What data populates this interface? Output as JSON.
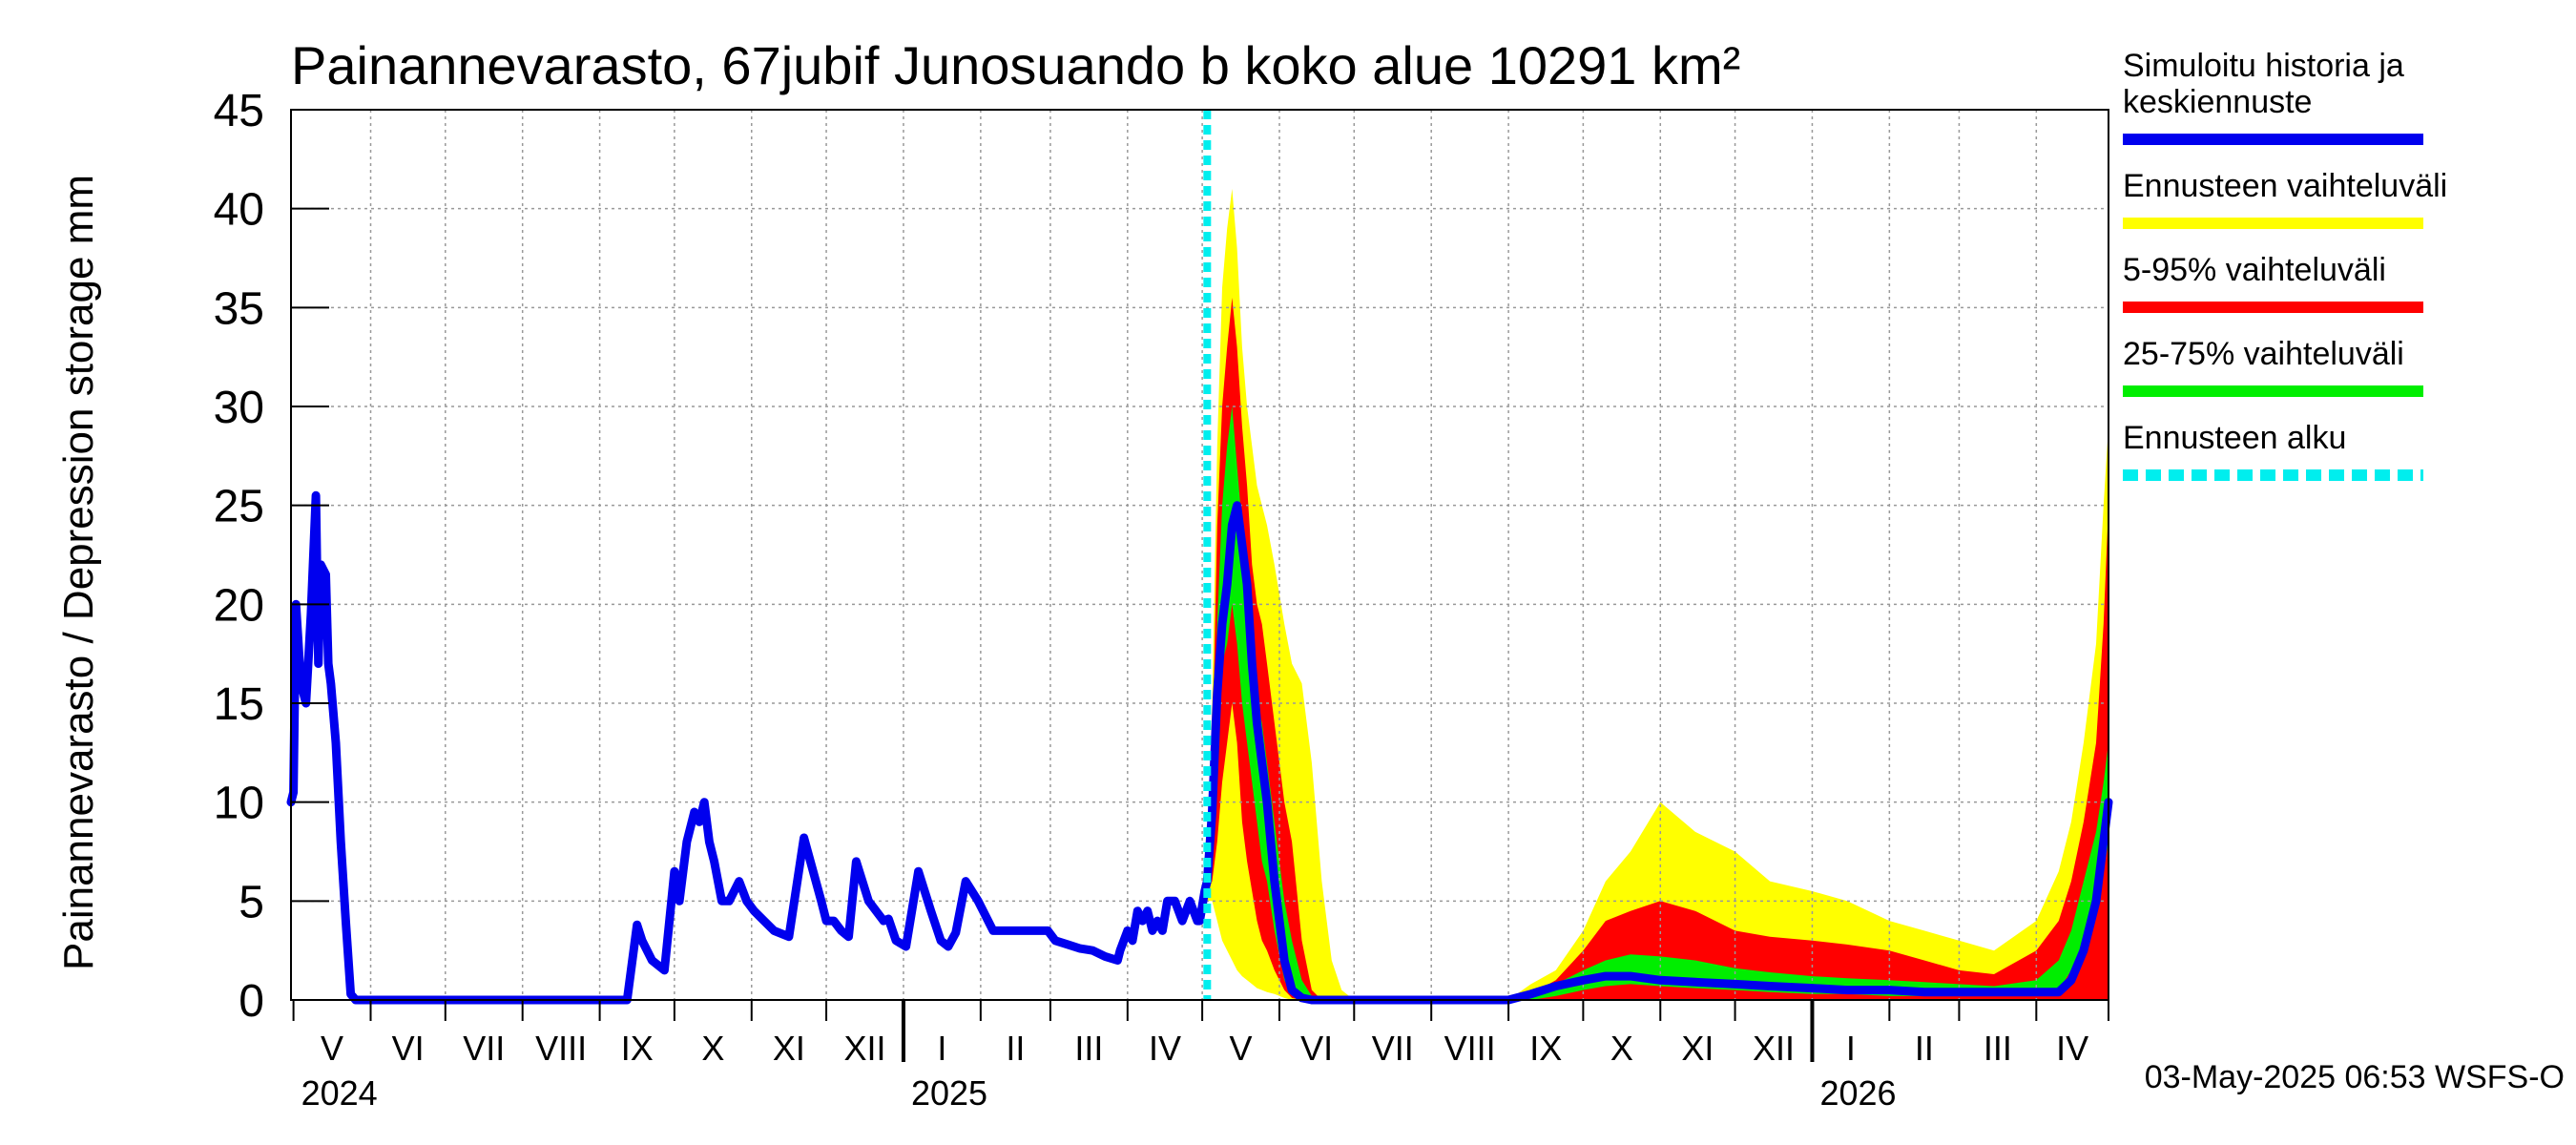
{
  "chart_data": {
    "type": "area",
    "title": "Painannevarasto, 67jubif Junosuando b koko alue 10291 km²",
    "ylabel": "Painannevarasto / Depression storage    mm",
    "ylim": [
      0,
      45
    ],
    "yticks": [
      "0",
      "5",
      "10",
      "15",
      "20",
      "25",
      "30",
      "35",
      "40",
      "45"
    ],
    "grid": true,
    "legend_position": "right",
    "month_labels": [
      "V",
      "VI",
      "VII",
      "VIII",
      "IX",
      "X",
      "XI",
      "XII",
      "I",
      "II",
      "III",
      "IV",
      "V",
      "VI",
      "VII",
      "VIII",
      "IX",
      "X",
      "XI",
      "XII",
      "I",
      "II",
      "III",
      "IV"
    ],
    "year_labels": [
      "2024",
      "2025",
      "2026"
    ],
    "forecast_start": "2025-05-03",
    "timestamp": "03-May-2025 06:53 WSFS-O",
    "legend": [
      {
        "label": "Simuloitu historia ja keskiennuste",
        "lines": [
          "Simuloitu historia ja",
          "keskiennuste"
        ],
        "color": "#0000ee",
        "style": "solid"
      },
      {
        "label": "Ennusteen vaihteluväli",
        "lines": [
          "Ennusteen vaihteluväli"
        ],
        "color": "#ffff00",
        "style": "solid"
      },
      {
        "label": "5-95% vaihteluväli",
        "lines": [
          "5-95% vaihteluväli"
        ],
        "color": "#ff0000",
        "style": "solid"
      },
      {
        "label": "25-75% vaihteluväli",
        "lines": [
          "25-75% vaihteluväli"
        ],
        "color": "#00ee00",
        "style": "solid"
      },
      {
        "label": "Ennusteen alku",
        "lines": [
          "Ennusteen alku"
        ],
        "color": "#00eeee",
        "style": "dashed"
      }
    ],
    "series": [
      {
        "name": "Simuloitu historia ja keskiennuste",
        "x": [
          "2024-04-30",
          "2024-05-01",
          "2024-05-02",
          "2024-05-04",
          "2024-05-06",
          "2024-05-08",
          "2024-05-10",
          "2024-05-11",
          "2024-05-12",
          "2024-05-14",
          "2024-05-15",
          "2024-05-16",
          "2024-05-18",
          "2024-05-20",
          "2024-05-22",
          "2024-05-24",
          "2024-05-26",
          "2024-05-28",
          "2024-05-31",
          "2024-06-04",
          "2024-07-01",
          "2024-08-01",
          "2024-09-01",
          "2024-09-12",
          "2024-09-16",
          "2024-09-18",
          "2024-09-22",
          "2024-09-27",
          "2024-10-01",
          "2024-10-03",
          "2024-10-06",
          "2024-10-09",
          "2024-10-11",
          "2024-10-13",
          "2024-10-15",
          "2024-10-17",
          "2024-10-20",
          "2024-10-23",
          "2024-10-27",
          "2024-10-30",
          "2024-11-02",
          "2024-11-06",
          "2024-11-10",
          "2024-11-16",
          "2024-11-22",
          "2024-11-29",
          "2024-12-01",
          "2024-12-04",
          "2024-12-07",
          "2024-12-10",
          "2024-12-13",
          "2024-12-18",
          "2024-12-24",
          "2024-12-26",
          "2024-12-29",
          "2025-01-02",
          "2025-01-07",
          "2025-01-12",
          "2025-01-16",
          "2025-01-19",
          "2025-01-22",
          "2025-01-26",
          "2025-01-31",
          "2025-02-06",
          "2025-02-08",
          "2025-02-11",
          "2025-02-15",
          "2025-02-20",
          "2025-02-24",
          "2025-02-28",
          "2025-03-03",
          "2025-03-08",
          "2025-03-13",
          "2025-03-18",
          "2025-03-23",
          "2025-03-28",
          "2025-03-29",
          "2025-04-01",
          "2025-04-03",
          "2025-04-05",
          "2025-04-07",
          "2025-04-09",
          "2025-04-11",
          "2025-04-13",
          "2025-04-15",
          "2025-04-17",
          "2025-04-20",
          "2025-04-23",
          "2025-04-26",
          "2025-04-29",
          "2025-04-30",
          "2025-05-02",
          "2025-05-03",
          "2025-05-05",
          "2025-05-07",
          "2025-05-09",
          "2025-05-11",
          "2025-05-13",
          "2025-05-15",
          "2025-05-17",
          "2025-05-19",
          "2025-05-21",
          "2025-05-23",
          "2025-05-25",
          "2025-05-27",
          "2025-05-30",
          "2025-06-03",
          "2025-06-06",
          "2025-06-10",
          "2025-06-14",
          "2025-06-18",
          "2025-06-22",
          "2025-06-26",
          "2025-07-01",
          "2025-07-15",
          "2025-08-01",
          "2025-08-15",
          "2025-09-01",
          "2025-09-10",
          "2025-09-20",
          "2025-10-01",
          "2025-10-10",
          "2025-10-20",
          "2025-11-01",
          "2025-11-15",
          "2025-12-01",
          "2025-12-15",
          "2026-01-01",
          "2026-01-15",
          "2026-02-01",
          "2026-02-15",
          "2026-03-01",
          "2026-03-15",
          "2026-04-01",
          "2026-04-10",
          "2026-04-15",
          "2026-04-20",
          "2026-04-25",
          "2026-04-28",
          "2026-04-30"
        ],
        "values": [
          10,
          10.5,
          20,
          16,
          15,
          19.5,
          25.5,
          17,
          22,
          21.5,
          17,
          16,
          13,
          8,
          4,
          0.3,
          0,
          0,
          0,
          0,
          0,
          0,
          0,
          0,
          3.8,
          3,
          2,
          1.5,
          6.5,
          5,
          8,
          9.5,
          9,
          10,
          8,
          7,
          5,
          5,
          6,
          5,
          4.5,
          4,
          3.5,
          3.2,
          8.2,
          5,
          4,
          4,
          3.5,
          3.2,
          7,
          5,
          4,
          4.1,
          3,
          2.7,
          6.5,
          4.5,
          3,
          2.7,
          3.4,
          6,
          5,
          3.5,
          3.5,
          3.5,
          3.5,
          3.5,
          3.5,
          3.5,
          3,
          2.8,
          2.6,
          2.5,
          2.2,
          2,
          2.5,
          3.5,
          3,
          4.5,
          4,
          4.5,
          3.5,
          4,
          3.5,
          5,
          5,
          4,
          5,
          4,
          4,
          5.5,
          6,
          9.5,
          15.5,
          19,
          21,
          24,
          25,
          23,
          21,
          17,
          14,
          12,
          10,
          6,
          2,
          0.5,
          0.1,
          0,
          0,
          0,
          0,
          0,
          0,
          0,
          0,
          0,
          0.3,
          0.7,
          1,
          1.2,
          1.2,
          1,
          0.9,
          0.8,
          0.7,
          0.6,
          0.5,
          0.5,
          0.4,
          0.4,
          0.4,
          0.4,
          0.4,
          1,
          2.5,
          5,
          8,
          10
        ]
      },
      {
        "name": "Ennusteen vaihteluväli",
        "x": [
          "2025-05-03",
          "2025-05-05",
          "2025-05-07",
          "2025-05-09",
          "2025-05-11",
          "2025-05-13",
          "2025-05-15",
          "2025-05-17",
          "2025-05-19",
          "2025-05-21",
          "2025-05-23",
          "2025-05-25",
          "2025-05-27",
          "2025-05-30",
          "2025-06-03",
          "2025-06-06",
          "2025-06-10",
          "2025-06-14",
          "2025-06-18",
          "2025-06-22",
          "2025-06-26",
          "2025-07-01",
          "2025-07-15",
          "2025-08-01",
          "2025-08-15",
          "2025-09-01",
          "2025-09-10",
          "2025-09-20",
          "2025-10-01",
          "2025-10-10",
          "2025-10-20",
          "2025-11-01",
          "2025-11-15",
          "2025-12-01",
          "2025-12-15",
          "2026-01-01",
          "2026-01-15",
          "2026-02-01",
          "2026-02-15",
          "2026-03-01",
          "2026-03-15",
          "2026-04-01",
          "2026-04-10",
          "2026-04-15",
          "2026-04-20",
          "2026-04-25",
          "2026-04-28",
          "2026-04-30"
        ],
        "lower": [
          5,
          5,
          4,
          3,
          2.5,
          2,
          1.5,
          1.2,
          1,
          0.8,
          0.6,
          0.5,
          0.4,
          0.3,
          0.1,
          0,
          0,
          0,
          0,
          0,
          0,
          0,
          0,
          0,
          0,
          0,
          0,
          0,
          0,
          0,
          0,
          0,
          0,
          0,
          0,
          0,
          0,
          0,
          0,
          0,
          0,
          0,
          0,
          0,
          0,
          0,
          0,
          0
        ],
        "upper": [
          7,
          15,
          28,
          36,
          39,
          41,
          38,
          33,
          30,
          28,
          26,
          25,
          24,
          22,
          19,
          17,
          16,
          12,
          6,
          2,
          0.5,
          0,
          0,
          0,
          0,
          0,
          0.8,
          1.5,
          3.5,
          6,
          7.5,
          10,
          8.5,
          7.5,
          6,
          5.5,
          5,
          4,
          3.5,
          3,
          2.5,
          4,
          6.5,
          9,
          13,
          18,
          25,
          29
        ]
      },
      {
        "name": "5-95% vaihteluväli",
        "x": [
          "2025-05-03",
          "2025-05-05",
          "2025-05-07",
          "2025-05-09",
          "2025-05-11",
          "2025-05-13",
          "2025-05-15",
          "2025-05-17",
          "2025-05-19",
          "2025-05-21",
          "2025-05-23",
          "2025-05-25",
          "2025-05-27",
          "2025-05-30",
          "2025-06-03",
          "2025-06-06",
          "2025-06-10",
          "2025-06-14",
          "2025-06-18",
          "2025-06-22",
          "2025-06-26",
          "2025-07-01",
          "2025-07-15",
          "2025-08-01",
          "2025-08-15",
          "2025-09-01",
          "2025-09-10",
          "2025-09-20",
          "2025-10-01",
          "2025-10-10",
          "2025-10-20",
          "2025-11-01",
          "2025-11-15",
          "2025-12-01",
          "2025-12-15",
          "2026-01-01",
          "2026-01-15",
          "2026-02-01",
          "2026-02-15",
          "2026-03-01",
          "2026-03-15",
          "2026-04-01",
          "2026-04-10",
          "2026-04-15",
          "2026-04-20",
          "2026-04-25",
          "2026-04-28",
          "2026-04-30"
        ],
        "lower": [
          5.5,
          6,
          8,
          11,
          13,
          15,
          13,
          9,
          7,
          5.5,
          4,
          3,
          2.5,
          1.5,
          0.5,
          0.1,
          0,
          0,
          0,
          0,
          0,
          0,
          0,
          0,
          0,
          0,
          0,
          0,
          0,
          0,
          0,
          0,
          0,
          0,
          0,
          0,
          0,
          0,
          0,
          0,
          0,
          0,
          0,
          0,
          0,
          0,
          0,
          0
        ],
        "upper": [
          6.5,
          12,
          24,
          30,
          33,
          35.5,
          33,
          29,
          26,
          22,
          20,
          19,
          17,
          14,
          10,
          8,
          3,
          0.5,
          0,
          0,
          0,
          0,
          0,
          0,
          0,
          0,
          0.3,
          1,
          2.5,
          4,
          4.5,
          5,
          4.5,
          3.5,
          3.2,
          3,
          2.8,
          2.5,
          2,
          1.5,
          1.3,
          2.5,
          4,
          6,
          9,
          13,
          19,
          25
        ]
      },
      {
        "name": "25-75% vaihteluväli",
        "x": [
          "2025-05-03",
          "2025-05-05",
          "2025-05-07",
          "2025-05-09",
          "2025-05-11",
          "2025-05-13",
          "2025-05-15",
          "2025-05-17",
          "2025-05-19",
          "2025-05-21",
          "2025-05-23",
          "2025-05-25",
          "2025-05-27",
          "2025-05-30",
          "2025-06-03",
          "2025-06-06",
          "2025-06-10",
          "2025-06-14",
          "2025-06-18",
          "2025-06-22",
          "2025-06-26",
          "2025-07-01",
          "2025-07-15",
          "2025-08-01",
          "2025-08-15",
          "2025-09-01",
          "2025-09-10",
          "2025-09-20",
          "2025-10-01",
          "2025-10-10",
          "2025-10-20",
          "2025-11-01",
          "2025-11-15",
          "2025-12-01",
          "2025-12-15",
          "2026-01-01",
          "2026-01-15",
          "2026-02-01",
          "2026-02-15",
          "2026-03-01",
          "2026-03-15",
          "2026-04-01",
          "2026-04-10",
          "2026-04-15",
          "2026-04-20",
          "2026-04-25",
          "2026-04-28",
          "2026-04-30"
        ],
        "lower": [
          5.8,
          8,
          14,
          17,
          18,
          20,
          18,
          15,
          13,
          11,
          9,
          7,
          6,
          3.5,
          1,
          0.3,
          0,
          0,
          0,
          0,
          0,
          0,
          0,
          0,
          0,
          0,
          0,
          0.2,
          0.5,
          0.7,
          0.8,
          0.7,
          0.6,
          0.5,
          0.4,
          0.3,
          0.3,
          0.2,
          0.2,
          0.2,
          0.2,
          0.3,
          0.5,
          1.5,
          3,
          5,
          6.5,
          8
        ],
        "upper": [
          6.2,
          10,
          19,
          25,
          28,
          30,
          27,
          24,
          21,
          17,
          15,
          14,
          12,
          9,
          5,
          3,
          1,
          0.2,
          0,
          0,
          0,
          0,
          0,
          0,
          0,
          0,
          0.1,
          0.8,
          1.5,
          2,
          2.3,
          2.2,
          2,
          1.6,
          1.4,
          1.2,
          1.1,
          1,
          0.9,
          0.8,
          0.7,
          1,
          2,
          3.5,
          6,
          8.5,
          11,
          13
        ]
      }
    ]
  }
}
